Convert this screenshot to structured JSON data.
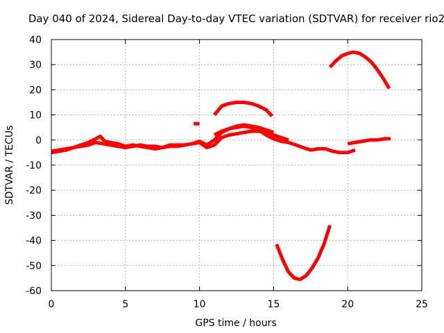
{
  "chart_data": {
    "type": "line",
    "title": "Day 040 of 2024, Sidereal Day-to-day VTEC variation (SDTVAR) for receiver rio2",
    "xlabel": "GPS time / hours",
    "ylabel": "SDTVAR / TECUs",
    "xlim": [
      0,
      25
    ],
    "ylim": [
      -60,
      40
    ],
    "xticks": [
      0,
      5,
      10,
      15,
      20,
      25
    ],
    "yticks": [
      -60,
      -50,
      -40,
      -30,
      -20,
      -10,
      0,
      10,
      20,
      30,
      40
    ],
    "grid": true,
    "series": [
      {
        "name": "track-1",
        "color": "#ff0000",
        "x": [
          0.0,
          0.5,
          1.0,
          1.5,
          2.0,
          2.5,
          3.0,
          3.3,
          3.6,
          4.0,
          4.5,
          5.0,
          5.5,
          6.0,
          6.5,
          7.0,
          7.5,
          8.0,
          8.5,
          9.0,
          9.5,
          10.0,
          10.5,
          11.0,
          11.5,
          12.0,
          12.5,
          13.0,
          13.5,
          14.0,
          14.5,
          15.0
        ],
        "y": [
          -4.5,
          -4.0,
          -3.5,
          -3.0,
          -2.0,
          -1.0,
          0.5,
          1.5,
          -0.5,
          -1.0,
          -1.5,
          -2.5,
          -2.0,
          -2.5,
          -3.0,
          -3.5,
          -3.0,
          -2.5,
          -2.5,
          -2.0,
          -1.5,
          -0.5,
          -2.0,
          0.0,
          3.0,
          4.5,
          5.5,
          6.0,
          5.5,
          5.0,
          4.0,
          3.0
        ]
      },
      {
        "name": "track-2",
        "color": "#ff0000",
        "x": [
          0.0,
          0.5,
          1.0,
          1.5,
          2.0,
          2.5,
          3.0,
          3.5,
          4.0,
          4.5,
          5.0,
          5.5,
          6.0,
          6.5,
          7.0,
          7.5,
          8.0,
          8.5,
          9.0,
          9.5,
          10.0,
          10.5,
          11.0,
          11.5,
          12.0,
          12.5,
          13.0,
          13.5,
          14.0,
          14.5,
          15.0,
          15.5,
          16.0
        ],
        "y": [
          -5.0,
          -4.5,
          -4.0,
          -3.0,
          -2.5,
          -2.0,
          -1.0,
          -1.5,
          -2.0,
          -2.5,
          -3.0,
          -2.5,
          -2.0,
          -2.5,
          -2.5,
          -3.0,
          -2.0,
          -2.0,
          -2.0,
          -1.5,
          -1.0,
          -3.0,
          -2.0,
          1.0,
          2.0,
          2.5,
          3.0,
          3.5,
          3.5,
          3.0,
          2.0,
          1.0,
          0.0
        ]
      },
      {
        "name": "track-3",
        "color": "#ff0000",
        "x": [
          11.0,
          11.5,
          12.0,
          12.5,
          13.0,
          13.5,
          14.0,
          14.5,
          15.0,
          15.5,
          16.0,
          16.5,
          17.0,
          17.5,
          18.0,
          18.5,
          19.0,
          19.5,
          20.0,
          20.5
        ],
        "y": [
          2.0,
          3.5,
          4.5,
          5.0,
          5.5,
          5.0,
          4.0,
          2.0,
          0.5,
          -0.5,
          -1.0,
          -2.0,
          -3.0,
          -4.0,
          -3.5,
          -3.5,
          -4.5,
          -5.0,
          -5.0,
          -4.0
        ]
      },
      {
        "name": "track-4",
        "color": "#ff0000",
        "x": [
          11.0,
          11.5,
          12.0,
          12.5,
          13.0,
          13.5,
          14.0,
          14.5,
          14.9
        ],
        "y": [
          10.0,
          13.5,
          14.5,
          15.0,
          15.0,
          14.5,
          13.5,
          12.0,
          9.5
        ]
      },
      {
        "name": "track-5",
        "color": "#ff0000",
        "x": [
          9.6,
          10.0
        ],
        "y": [
          6.5,
          6.5
        ]
      },
      {
        "name": "track-6",
        "color": "#ff0000",
        "x": [
          20.0,
          20.5,
          21.0,
          21.5,
          22.0,
          22.5,
          22.9
        ],
        "y": [
          -1.5,
          -1.0,
          -0.5,
          0.0,
          0.0,
          0.5,
          0.5
        ]
      },
      {
        "name": "track-7",
        "color": "#ff0000",
        "x": [
          18.8,
          19.2,
          19.6,
          20.0,
          20.4,
          20.8,
          21.2,
          21.6,
          22.0,
          22.4,
          22.8
        ],
        "y": [
          29.0,
          31.5,
          33.5,
          34.5,
          35.0,
          34.5,
          33.0,
          31.0,
          28.0,
          24.5,
          20.5
        ]
      },
      {
        "name": "track-8",
        "color": "#ff0000",
        "x": [
          15.2,
          15.6,
          16.0,
          16.4,
          16.8,
          17.2,
          17.6,
          18.0,
          18.4,
          18.8
        ],
        "y": [
          -41.5,
          -47.5,
          -52.5,
          -55.0,
          -55.5,
          -54.0,
          -51.0,
          -47.0,
          -41.5,
          -34.0
        ]
      }
    ]
  }
}
